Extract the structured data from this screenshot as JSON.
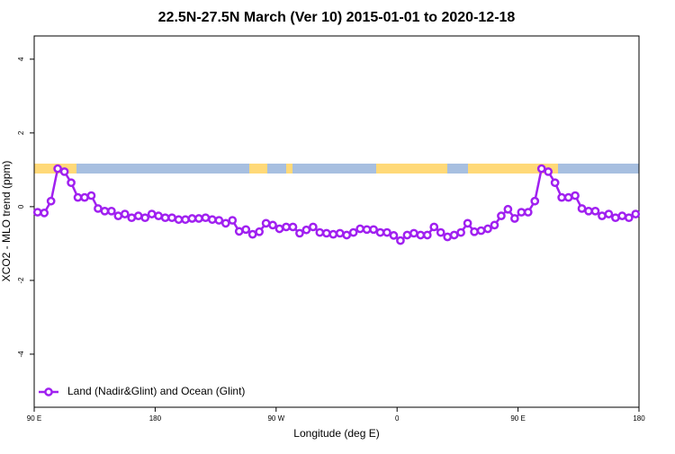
{
  "chart_data": {
    "type": "line",
    "title": "22.5N-27.5N March (Ver 10)   2015-01-01 to 2020-12-18",
    "x_label": "Longitude (deg E)",
    "y_label": "XCO2 - MLO trend (ppm)",
    "x": [
      92.5,
      97.5,
      102.5,
      107.5,
      112.5,
      117.5,
      122.5,
      127.5,
      132.5,
      137.5,
      142.5,
      147.5,
      152.5,
      157.5,
      162.5,
      167.5,
      172.5,
      177.5,
      182.5,
      187.5,
      192.5,
      197.5,
      202.5,
      207.5,
      212.5,
      217.5,
      222.5,
      227.5,
      232.5,
      237.5,
      242.5,
      247.5,
      252.5,
      257.5,
      262.5,
      267.5,
      272.5,
      277.5,
      282.5,
      287.5,
      292.5,
      297.5,
      302.5,
      307.5,
      312.5,
      317.5,
      322.5,
      327.5,
      332.5,
      337.5,
      342.5,
      347.5,
      352.5,
      357.5,
      362.5,
      367.5,
      372.5,
      377.5,
      382.5,
      387.5,
      392.5,
      397.5,
      402.5,
      407.5,
      412.5,
      417.5,
      422.5,
      427.5,
      432.5,
      437.5,
      442.5,
      447.5,
      452.5,
      457.5,
      462.5,
      467.5,
      472.5,
      477.5,
      482.5,
      487.5,
      492.5,
      497.5,
      502.5,
      507.5,
      512.5,
      517.5,
      522.5,
      527.5,
      532.5,
      537.5
    ],
    "series": [
      {
        "name": "Land (Nadir&Glint) and Ocean (Glint)",
        "color": "#a020f0",
        "values": [
          -0.15,
          -0.17,
          0.15,
          1.03,
          0.95,
          0.65,
          0.25,
          0.25,
          0.3,
          -0.05,
          -0.12,
          -0.12,
          -0.25,
          -0.2,
          -0.3,
          -0.25,
          -0.3,
          -0.2,
          -0.25,
          -0.3,
          -0.3,
          -0.35,
          -0.35,
          -0.32,
          -0.32,
          -0.3,
          -0.35,
          -0.37,
          -0.45,
          -0.37,
          -0.67,
          -0.62,
          -0.75,
          -0.68,
          -0.45,
          -0.5,
          -0.6,
          -0.55,
          -0.55,
          -0.72,
          -0.63,
          -0.55,
          -0.7,
          -0.72,
          -0.75,
          -0.72,
          -0.77,
          -0.7,
          -0.6,
          -0.62,
          -0.62,
          -0.7,
          -0.7,
          -0.78,
          -0.92,
          -0.77,
          -0.72,
          -0.77,
          -0.77,
          -0.55,
          -0.7,
          -0.82,
          -0.77,
          -0.7,
          -0.45,
          -0.68,
          -0.65,
          -0.6,
          -0.5,
          -0.25,
          -0.07,
          -0.32,
          -0.15,
          -0.15,
          0.15,
          1.03,
          0.95,
          0.65,
          0.25,
          0.25,
          0.3,
          -0.05,
          -0.12,
          -0.12,
          -0.25,
          -0.2,
          -0.3,
          -0.25,
          -0.3,
          -0.2
        ]
      }
    ],
    "xlim": [
      90,
      540
    ],
    "xticks": [
      {
        "value": 90,
        "label": "90 E"
      },
      180,
      {
        "value": 270,
        "label": "90 W"
      },
      {
        "value": 360,
        "label": "0"
      },
      {
        "value": 450,
        "label": "90 E"
      },
      {
        "value": 540,
        "label": "180"
      }
    ],
    "ylim": [
      -5.44,
      4.63
    ],
    "yticks": [
      -4,
      -2,
      0,
      2,
      4
    ],
    "legend": "bottom-left"
  }
}
